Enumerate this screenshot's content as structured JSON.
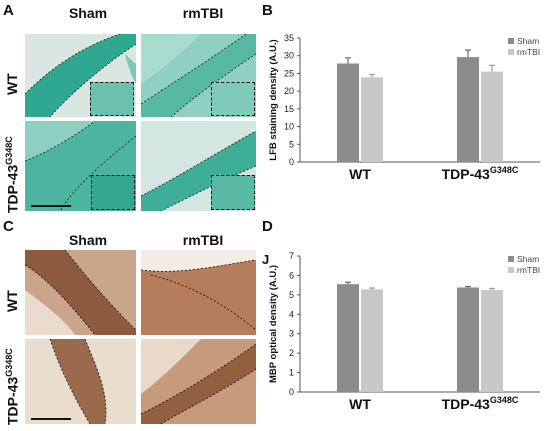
{
  "panels": {
    "a": {
      "letter": "A",
      "col1": "Sham",
      "col2": "rmTBI",
      "row1": "WT",
      "row2_base": "TDP-43",
      "row2_sup": "G348C"
    },
    "b": {
      "letter": "B"
    },
    "c": {
      "letter": "C",
      "col1": "Sham",
      "col2": "rmTBI",
      "row1": "WT",
      "row2_base": "TDP-43",
      "row2_sup": "G348C"
    },
    "d": {
      "letter": "D",
      "extra_letter": "J"
    }
  },
  "chart_data": [
    {
      "type": "bar",
      "categories": [
        "WT",
        "TDP-43G348C"
      ],
      "category_labels": [
        {
          "base": "WT",
          "sup": ""
        },
        {
          "base": "TDP-43",
          "sup": "G348C"
        }
      ],
      "series": [
        {
          "name": "Sham",
          "values": [
            27.8,
            29.6
          ],
          "errors": [
            1.6,
            2.0
          ],
          "color": "#8c8c8c"
        },
        {
          "name": "rmTBI",
          "values": [
            23.9,
            25.5
          ],
          "errors": [
            0.8,
            1.8
          ],
          "color": "#c8c8c8"
        }
      ],
      "ylabel": "LFB staining density (A.U.)",
      "ylim": [
        0,
        35
      ],
      "yticks": [
        0,
        5,
        10,
        15,
        20,
        25,
        30,
        35
      ],
      "legend": "top-right",
      "grid": false
    },
    {
      "type": "bar",
      "categories": [
        "WT",
        "TDP-43G348C"
      ],
      "category_labels": [
        {
          "base": "WT",
          "sup": ""
        },
        {
          "base": "TDP-43",
          "sup": "G348C"
        }
      ],
      "series": [
        {
          "name": "Sham",
          "values": [
            5.55,
            5.38
          ],
          "errors": [
            0.1,
            0.05
          ],
          "color": "#8c8c8c"
        },
        {
          "name": "rmTBI",
          "values": [
            5.28,
            5.25
          ],
          "errors": [
            0.07,
            0.08
          ],
          "color": "#c8c8c8"
        }
      ],
      "ylabel": "MBP optical density (A.U.)",
      "ylim": [
        0,
        7
      ],
      "yticks": [
        0,
        1,
        2,
        3,
        4,
        5,
        6,
        7
      ],
      "legend": "top-right",
      "grid": false
    }
  ]
}
